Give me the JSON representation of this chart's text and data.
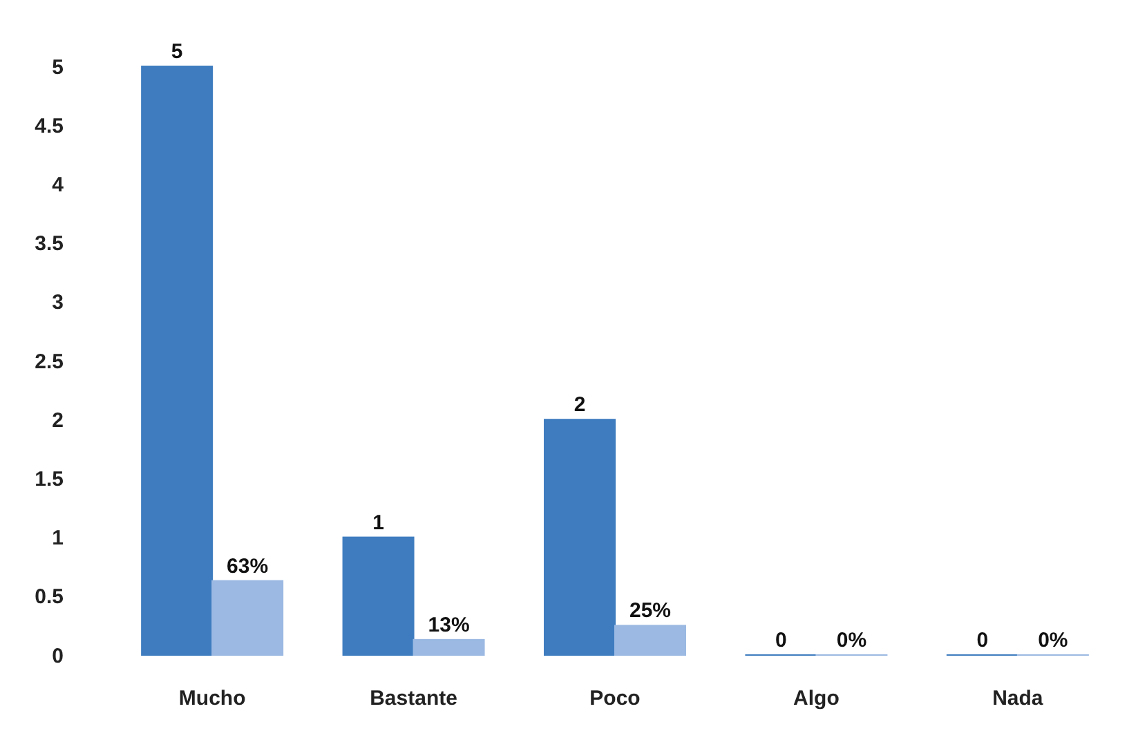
{
  "chart_data": {
    "type": "bar",
    "categories": [
      "Mucho",
      "Bastante",
      "Poco",
      "Algo",
      "Nada"
    ],
    "series": [
      {
        "color": "#3e7cbf",
        "values": [
          5,
          1,
          2,
          0,
          0
        ],
        "value_labels": [
          "5",
          "1",
          "2",
          "0",
          "0"
        ]
      },
      {
        "color": "#9bb9e2",
        "values": [
          0.63,
          0.13,
          0.25,
          0,
          0
        ],
        "value_labels": [
          "63%",
          "13%",
          "25%",
          "0%",
          "0%"
        ]
      }
    ],
    "ylim": [
      0,
      5
    ],
    "yticks": [
      0,
      0.5,
      1,
      1.5,
      2,
      2.5,
      3,
      3.5,
      4,
      4.5,
      5
    ],
    "grid": false
  }
}
